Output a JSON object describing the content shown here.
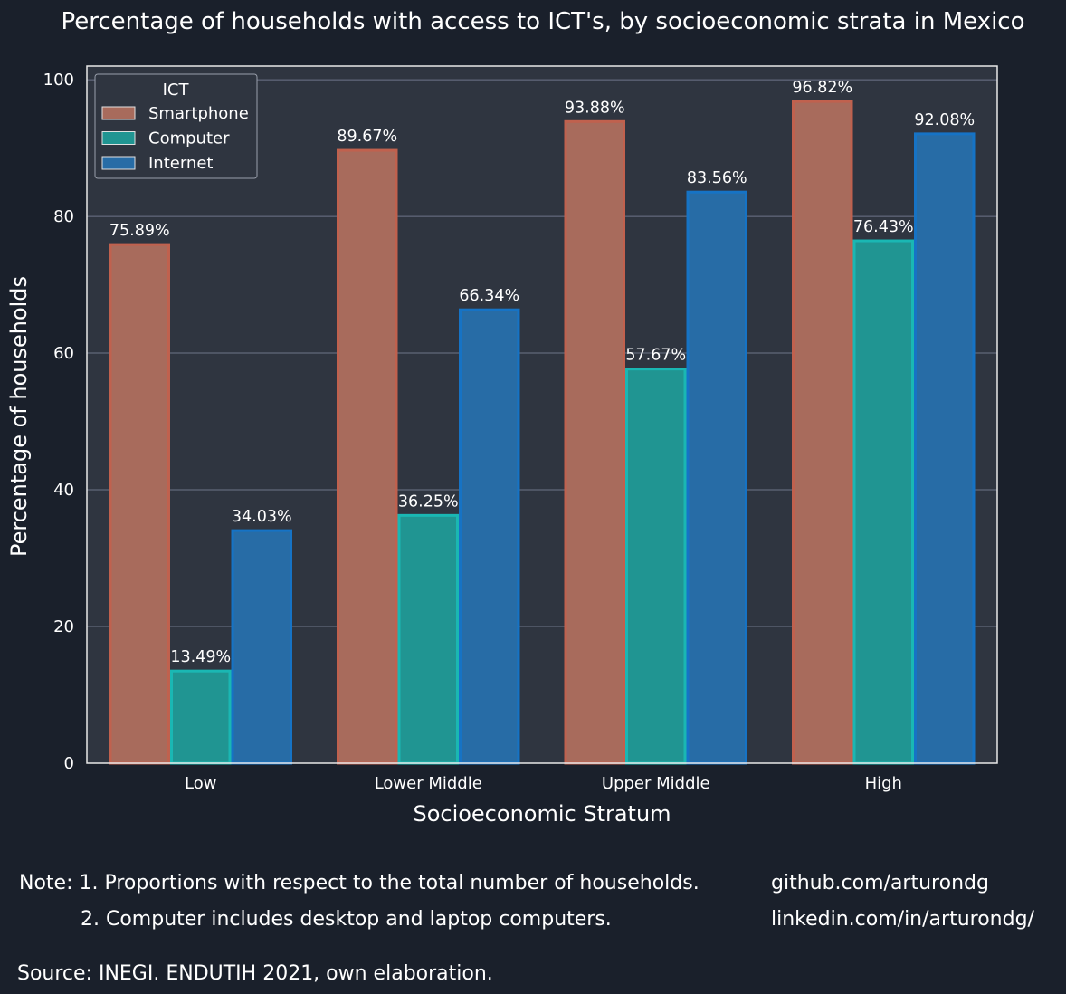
{
  "chart_data": {
    "type": "bar",
    "title": "Percentage of households with access to ICT's, by socioeconomic strata in Mexico",
    "xlabel": "Socioeconomic Stratum",
    "ylabel": "Percentage of households",
    "categories": [
      "Low",
      "Lower Middle",
      "Upper Middle",
      "High"
    ],
    "ylim": [
      0,
      102
    ],
    "yticks": [
      "0",
      "20",
      "40",
      "60",
      "80",
      "100"
    ],
    "grid": true,
    "legend": {
      "title": "ICT",
      "placement": "top-left"
    },
    "series": [
      {
        "name": "Smartphone",
        "values": [
          75.89,
          89.67,
          93.88,
          96.82
        ],
        "labels": [
          "75.89%",
          "89.67%",
          "93.88%",
          "96.82%"
        ],
        "fill": "#a86b5c",
        "stroke": "#c0614e"
      },
      {
        "name": "Computer",
        "values": [
          13.49,
          36.25,
          57.67,
          76.43
        ],
        "labels": [
          "13.49%",
          "36.25%",
          "57.67%",
          "76.43%"
        ],
        "fill": "#209592",
        "stroke": "#1ab7b3"
      },
      {
        "name": "Internet",
        "values": [
          34.03,
          66.34,
          83.56,
          92.08
        ],
        "labels": [
          "34.03%",
          "66.34%",
          "83.56%",
          "92.08%"
        ],
        "fill": "#276ca6",
        "stroke": "#1673c5"
      }
    ]
  },
  "notes": {
    "line1": "Note: 1. Proportions with respect to the total number of households.",
    "line2": "2. Computer includes desktop and laptop computers.",
    "github": "github.com/arturondg",
    "linkedin": "linkedin.com/in/arturondg/",
    "source": "Source: INEGI. ENDUTIH 2021, own elaboration."
  },
  "colors": {
    "background": "#1a202b",
    "plot_background": "#2f3540",
    "grid": "#6d7589",
    "text": "#ffffff"
  }
}
